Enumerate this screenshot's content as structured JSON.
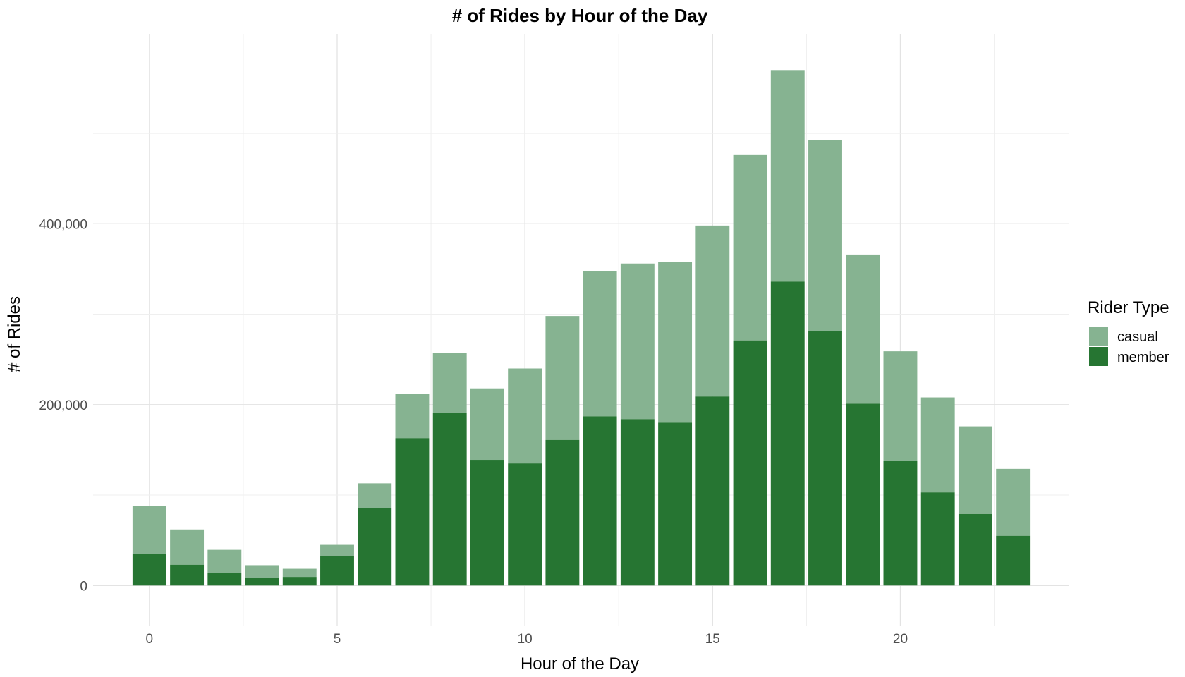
{
  "chart_data": {
    "type": "bar",
    "stacked": true,
    "title": "# of Rides by Hour of the Day",
    "xlabel": "Hour of the Day",
    "ylabel": "# of Rides",
    "x": [
      0,
      1,
      2,
      3,
      4,
      5,
      6,
      7,
      8,
      9,
      10,
      11,
      12,
      13,
      14,
      15,
      16,
      17,
      18,
      19,
      20,
      21,
      22,
      23
    ],
    "xlim": [
      -1.5,
      24.5
    ],
    "ylim": [
      -45000,
      610000
    ],
    "x_ticks": [
      0,
      5,
      10,
      15,
      20
    ],
    "x_tick_labels": [
      "0",
      "5",
      "10",
      "15",
      "20"
    ],
    "y_ticks": [
      0,
      200000,
      400000
    ],
    "y_tick_labels": [
      "0",
      "200,000",
      "400,000"
    ],
    "grid": true,
    "legend": {
      "title": "Rider Type",
      "position": "right"
    },
    "series": [
      {
        "name": "member",
        "color": "#267532",
        "values": [
          35000,
          23000,
          13500,
          8500,
          9500,
          33000,
          86000,
          163000,
          191000,
          139000,
          135000,
          161000,
          187000,
          184000,
          180000,
          209000,
          271000,
          336000,
          281000,
          201000,
          138000,
          103000,
          79000,
          55000
        ]
      },
      {
        "name": "casual",
        "color": "#86b391",
        "values": [
          53000,
          39000,
          26000,
          14000,
          9000,
          12000,
          27000,
          49000,
          66000,
          79000,
          105000,
          137000,
          161000,
          172000,
          178000,
          189000,
          205000,
          234000,
          212000,
          165000,
          121000,
          105000,
          97000,
          74000
        ]
      }
    ]
  }
}
